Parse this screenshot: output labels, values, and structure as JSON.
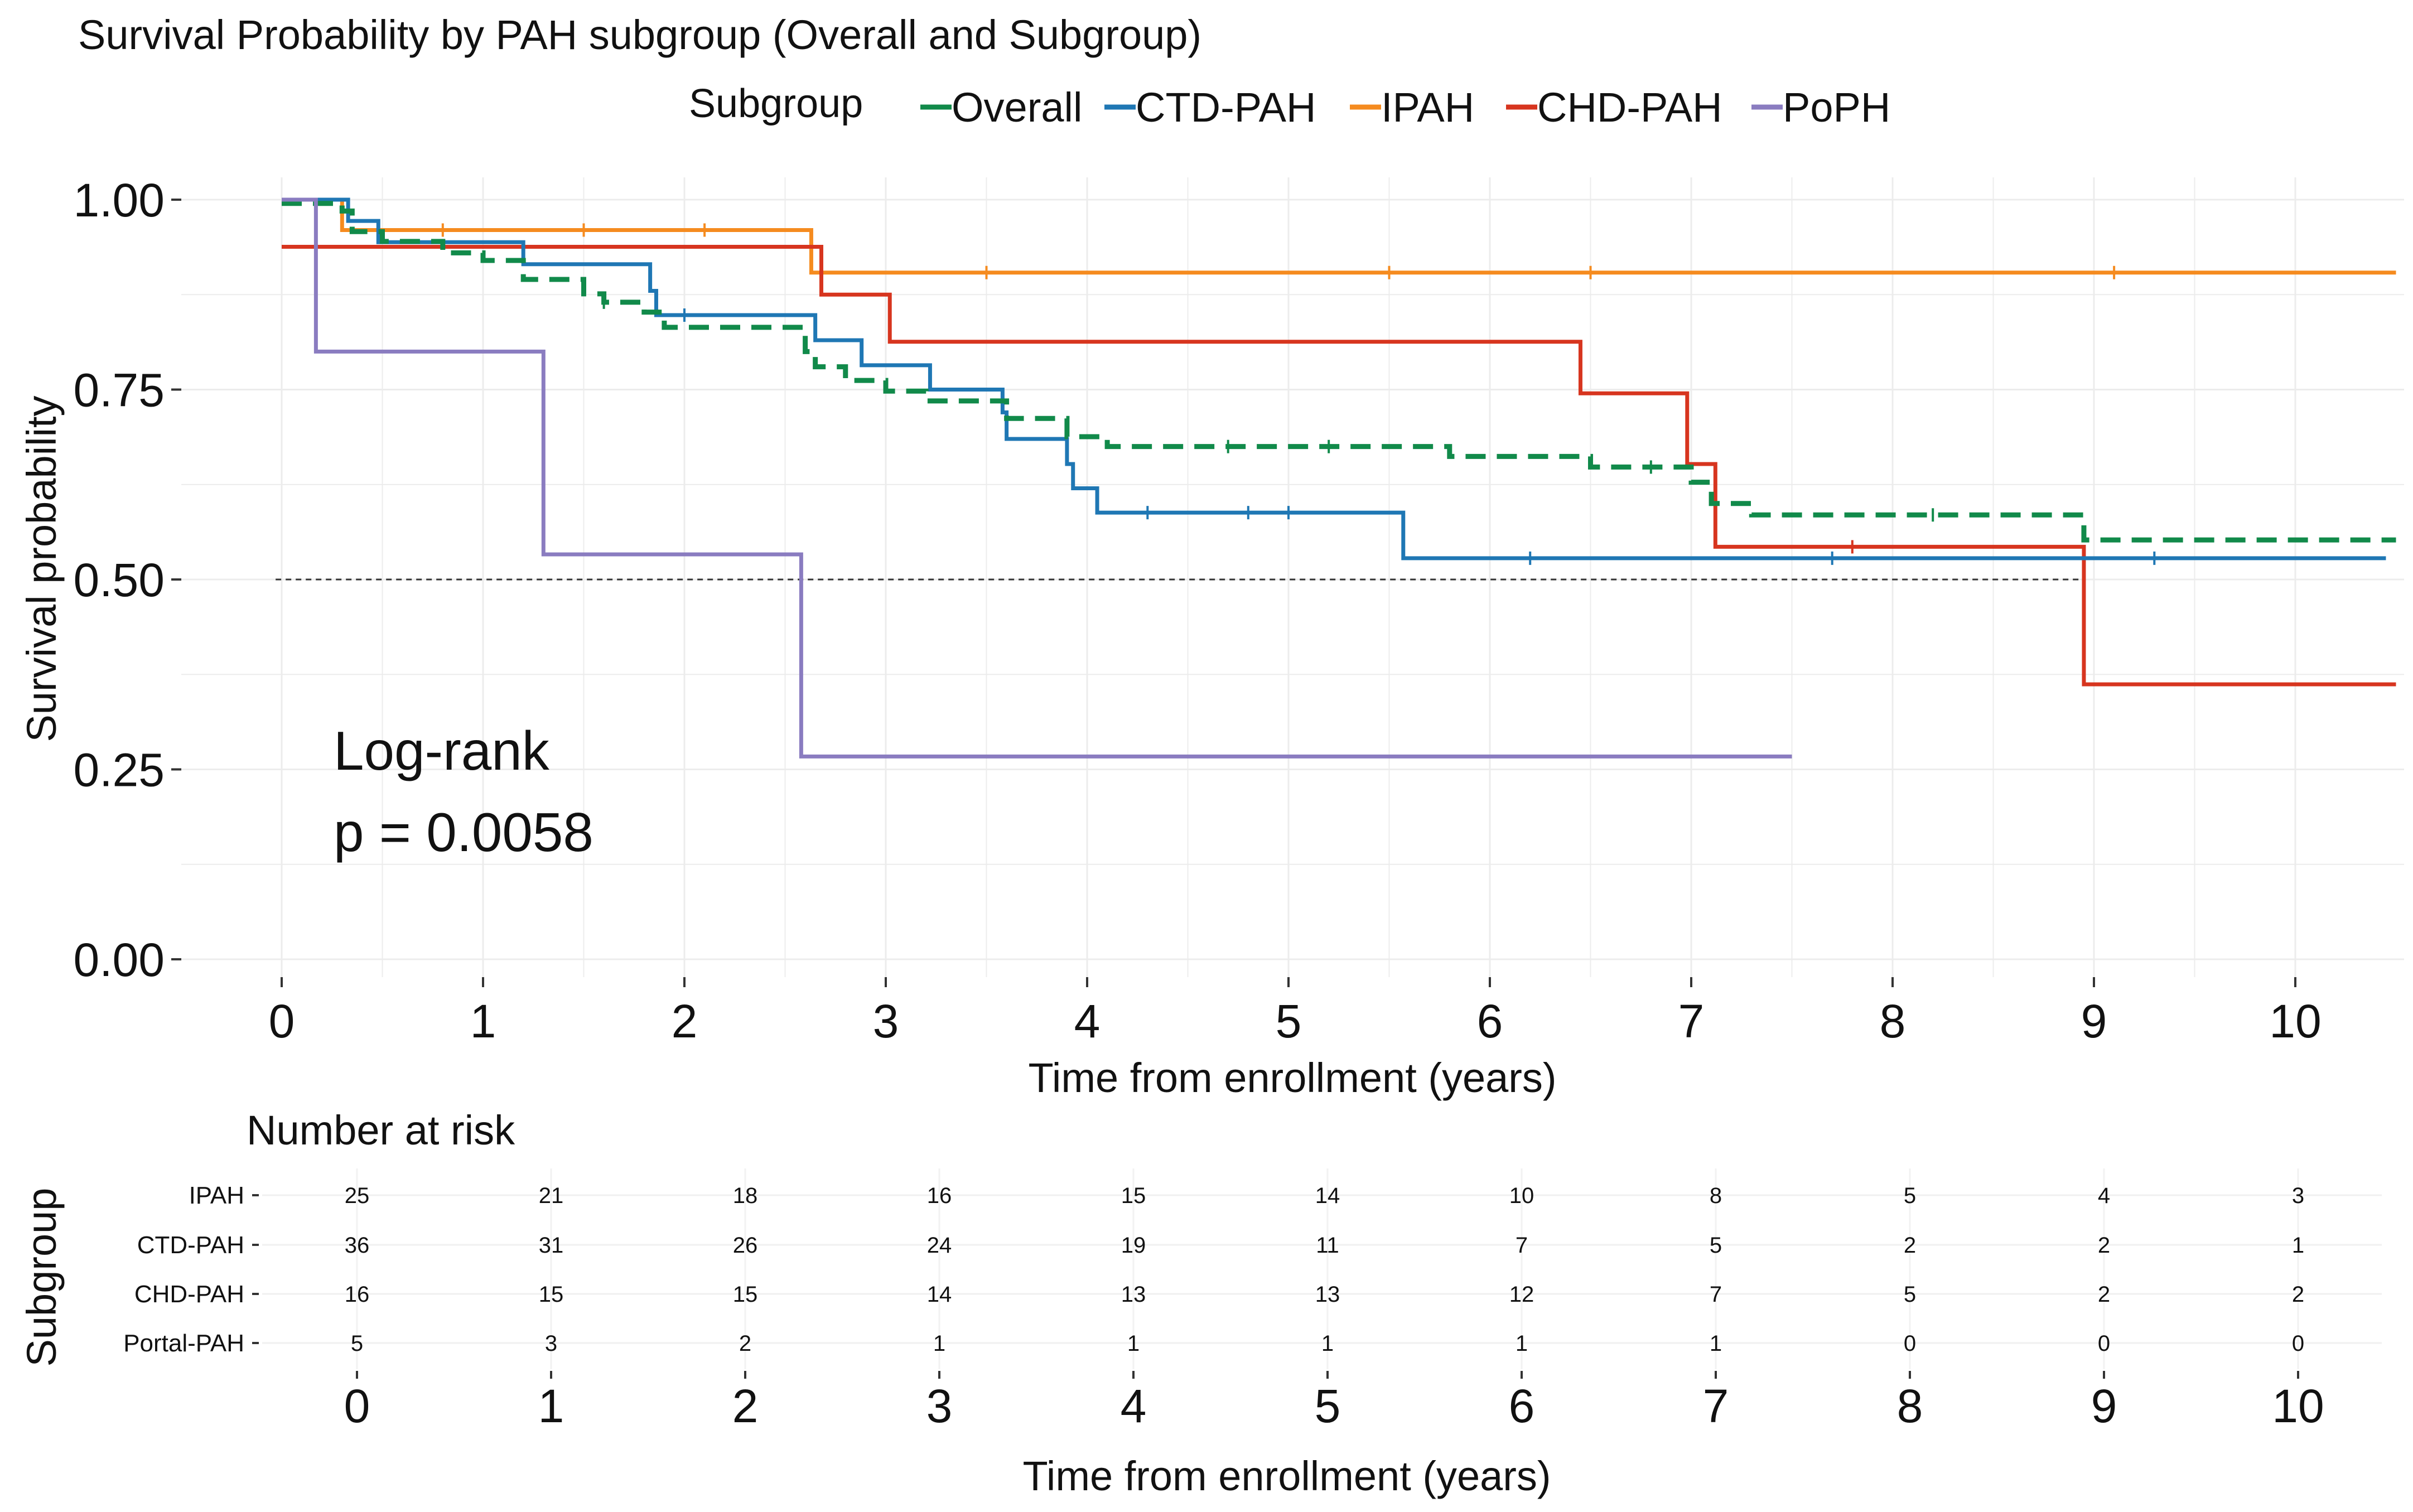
{
  "chart_data": {
    "type": "line",
    "title": "Survival Probability by PAH subgroup (Overall and Subgroup)",
    "legend": {
      "title": "Subgroup",
      "placement": "top",
      "entries": [
        "Overall",
        "CTD-PAH",
        "IPAH",
        "CHD-PAH",
        "PoPH"
      ]
    },
    "colors": {
      "Overall": "#118a4a",
      "CTD-PAH": "#1f77b4",
      "IPAH": "#f58b1f",
      "CHD-PAH": "#d7351f",
      "PoPH": "#8a7cc0",
      "median_line": "#333333",
      "grid": "#ececec",
      "text": "#111111"
    },
    "xlabel": "Time from enrollment (years)",
    "ylabel": "Survival probability",
    "xlim": [
      -0.5,
      10.5
    ],
    "ylim": [
      -0.02,
      1.02
    ],
    "x_ticks": [
      "0",
      "1",
      "2",
      "3",
      "4",
      "5",
      "6",
      "7",
      "8",
      "9",
      "10"
    ],
    "y_ticks": [
      "0.00",
      "0.25",
      "0.50",
      "0.75",
      "1.00"
    ],
    "median_line": 0.5,
    "annotation": [
      "Log-rank",
      "p = 0.0058"
    ],
    "series": [
      {
        "name": "Overall",
        "dashed": true,
        "end_x": 10.5,
        "steps": [
          [
            0,
            0.995
          ],
          [
            0.3,
            0.985
          ],
          [
            0.35,
            0.958
          ],
          [
            0.5,
            0.945
          ],
          [
            0.8,
            0.93
          ],
          [
            1.0,
            0.92
          ],
          [
            1.2,
            0.895
          ],
          [
            1.5,
            0.876
          ],
          [
            1.6,
            0.865
          ],
          [
            1.8,
            0.852
          ],
          [
            1.9,
            0.832
          ],
          [
            2.6,
            0.8
          ],
          [
            2.65,
            0.78
          ],
          [
            2.8,
            0.762
          ],
          [
            3.0,
            0.748
          ],
          [
            3.2,
            0.735
          ],
          [
            3.6,
            0.712
          ],
          [
            3.9,
            0.688
          ],
          [
            4.1,
            0.675
          ],
          [
            5.8,
            0.662
          ],
          [
            6.5,
            0.648
          ],
          [
            7.0,
            0.628
          ],
          [
            7.1,
            0.6
          ],
          [
            7.3,
            0.585
          ],
          [
            8.95,
            0.552
          ]
        ],
        "censor_x": [
          1.6,
          4.7,
          5.2,
          6.8,
          8.2
        ]
      },
      {
        "name": "CTD-PAH",
        "dashed": false,
        "end_x": 10.45,
        "steps": [
          [
            0,
            1.0
          ],
          [
            0.33,
            0.972
          ],
          [
            0.48,
            0.944
          ],
          [
            1.2,
            0.915
          ],
          [
            1.83,
            0.88
          ],
          [
            1.86,
            0.848
          ],
          [
            2.65,
            0.815
          ],
          [
            2.88,
            0.782
          ],
          [
            3.22,
            0.75
          ],
          [
            3.58,
            0.72
          ],
          [
            3.6,
            0.685
          ],
          [
            3.9,
            0.652
          ],
          [
            3.93,
            0.62
          ],
          [
            4.05,
            0.588
          ],
          [
            5.57,
            0.528
          ]
        ],
        "censor_x": [
          2.0,
          4.3,
          4.8,
          5.0,
          6.2,
          7.7,
          9.3
        ]
      },
      {
        "name": "IPAH",
        "dashed": false,
        "end_x": 10.5,
        "steps": [
          [
            0,
            1.0
          ],
          [
            0.3,
            0.96
          ],
          [
            2.63,
            0.904
          ]
        ],
        "censor_x": [
          0.8,
          1.5,
          2.1,
          3.5,
          5.5,
          6.5,
          9.1
        ]
      },
      {
        "name": "CHD-PAH",
        "dashed": false,
        "end_x": 10.5,
        "steps": [
          [
            0,
            0.938
          ],
          [
            2.68,
            0.875
          ],
          [
            3.02,
            0.813
          ],
          [
            6.45,
            0.745
          ],
          [
            6.98,
            0.652
          ],
          [
            7.12,
            0.543
          ],
          [
            8.95,
            0.362
          ]
        ],
        "censor_x": [
          7.8
        ]
      },
      {
        "name": "PoPH",
        "dashed": false,
        "end_x": 7.5,
        "steps": [
          [
            0,
            1.0
          ],
          [
            0.17,
            0.8
          ],
          [
            1.3,
            0.533
          ],
          [
            2.58,
            0.267
          ]
        ],
        "censor_x": []
      }
    ],
    "risk_table": {
      "title": "Number at risk",
      "ylabel": "Subgroup",
      "xlabel": "Time from enrollment (years)",
      "times": [
        "0",
        "1",
        "2",
        "3",
        "4",
        "5",
        "6",
        "7",
        "8",
        "9",
        "10"
      ],
      "rows": [
        {
          "label": "IPAH",
          "values": [
            "25",
            "21",
            "18",
            "16",
            "15",
            "14",
            "10",
            "8",
            "5",
            "4",
            "3"
          ]
        },
        {
          "label": "CTD-PAH",
          "values": [
            "36",
            "31",
            "26",
            "24",
            "19",
            "11",
            "7",
            "5",
            "2",
            "2",
            "1"
          ]
        },
        {
          "label": "CHD-PAH",
          "values": [
            "16",
            "15",
            "15",
            "14",
            "13",
            "13",
            "12",
            "7",
            "5",
            "2",
            "2"
          ]
        },
        {
          "label": "Portal-PAH",
          "values": [
            "5",
            "3",
            "2",
            "1",
            "1",
            "1",
            "1",
            "1",
            "0",
            "0",
            "0"
          ]
        }
      ]
    }
  }
}
